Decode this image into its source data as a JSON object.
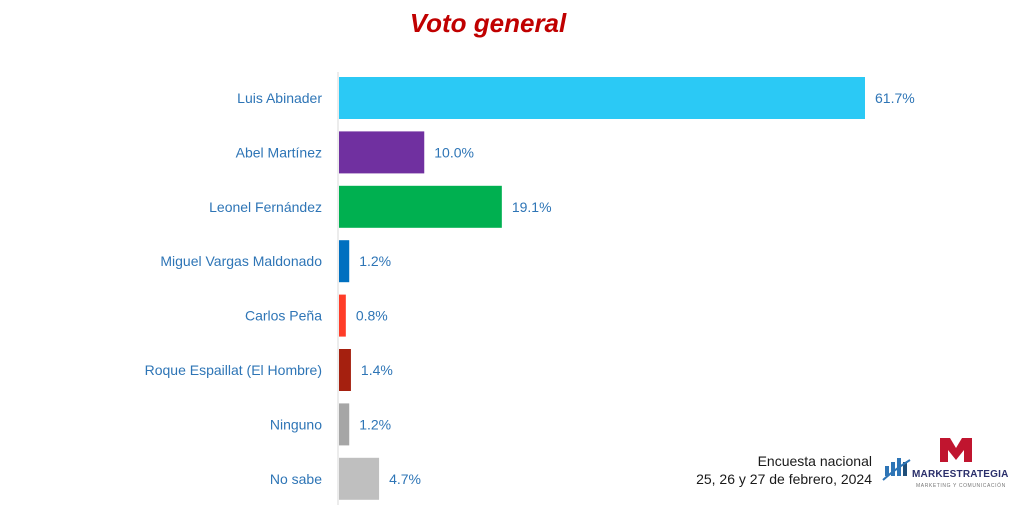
{
  "chart_data": {
    "type": "bar",
    "orientation": "horizontal",
    "title": "Voto general",
    "categories": [
      "Luis Abinader",
      "Abel Martínez",
      "Leonel Fernández",
      "Miguel Vargas Maldonado",
      "Carlos Peña",
      "Roque Espaillat (El Hombre)",
      "Ninguno",
      "No sabe"
    ],
    "values": [
      61.7,
      10.0,
      19.1,
      1.2,
      0.8,
      1.4,
      1.2,
      4.7
    ],
    "value_labels": [
      "61.7%",
      "10.0%",
      "19.1%",
      "1.2%",
      "0.8%",
      "1.4%",
      "1.2%",
      "4.7%"
    ],
    "colors": [
      "#2bc9f5",
      "#7030a0",
      "#00b050",
      "#0070c0",
      "#ff3c28",
      "#a5200f",
      "#a6a6a6",
      "#bfbfbf"
    ],
    "label_color": "#2e75b6",
    "title_color": "#c00000",
    "xlim": [
      0,
      61.7
    ],
    "grid": false,
    "legend": "none"
  },
  "footer": {
    "line1": "Encuesta nacional",
    "line2": "25, 26 y 27 de febrero, 2024"
  },
  "logo": {
    "name": "MARKESTRATEGIA",
    "tagline": "MARKETING Y COMUNICACIÓN",
    "colors": {
      "m_mark": "#c0152f",
      "text": "#2a2f6b",
      "bars": "#2e75b6"
    }
  }
}
